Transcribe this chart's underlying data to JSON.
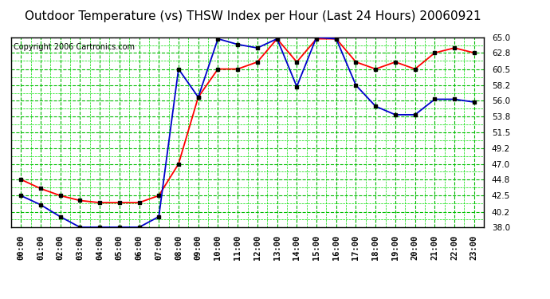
{
  "title": "Outdoor Temperature (vs) THSW Index per Hour (Last 24 Hours) 20060921",
  "copyright": "Copyright 2006 Cartronics.com",
  "hours": [
    "00:00",
    "01:00",
    "02:00",
    "03:00",
    "04:00",
    "05:00",
    "06:00",
    "07:00",
    "08:00",
    "09:00",
    "10:00",
    "11:00",
    "12:00",
    "13:00",
    "14:00",
    "15:00",
    "16:00",
    "17:00",
    "18:00",
    "19:00",
    "20:00",
    "21:00",
    "22:00",
    "23:00"
  ],
  "temp_red": [
    44.8,
    43.5,
    42.5,
    41.8,
    41.5,
    41.5,
    41.5,
    42.5,
    47.0,
    56.5,
    60.5,
    60.5,
    61.5,
    64.8,
    61.5,
    64.8,
    64.8,
    61.5,
    60.5,
    61.5,
    60.5,
    62.8,
    63.5,
    62.8
  ],
  "temp_blue": [
    42.5,
    41.2,
    39.5,
    38.0,
    38.0,
    38.0,
    38.0,
    39.5,
    60.5,
    56.5,
    64.8,
    64.0,
    63.5,
    64.8,
    58.0,
    65.0,
    64.8,
    58.2,
    55.2,
    54.0,
    54.0,
    56.2,
    56.2,
    55.8
  ],
  "red_color": "#ff0000",
  "blue_color": "#0000cc",
  "marker_color": "#000000",
  "bg_color": "#ffffff",
  "plot_bg_color": "#ffffff",
  "grid_major_color": "#00bb00",
  "grid_minor_color": "#00dd00",
  "ylim": [
    38.0,
    65.0
  ],
  "yticks": [
    38.0,
    40.2,
    42.5,
    44.8,
    47.0,
    49.2,
    51.5,
    53.8,
    56.0,
    58.2,
    60.5,
    62.8,
    65.0
  ],
  "title_fontsize": 11,
  "copyright_fontsize": 7,
  "tick_fontsize": 7.5
}
